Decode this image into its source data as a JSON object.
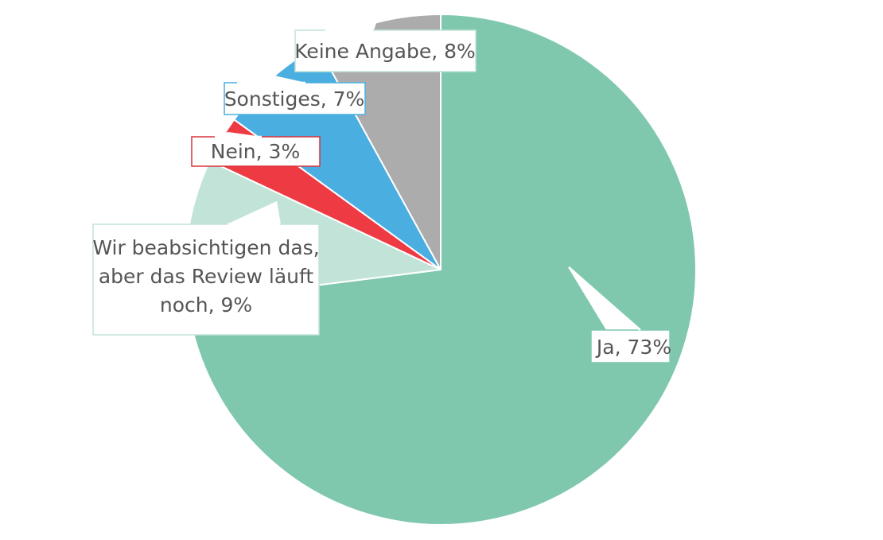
{
  "chart_data": {
    "type": "pie",
    "start_angle_deg": 0,
    "direction": "clockwise",
    "slices": [
      {
        "label": "Ja",
        "value": 73,
        "display": "Ja, 73%",
        "color": "#7fc8ae",
        "border": "#7fc8ae"
      },
      {
        "label": "Wir beabsichtigen das, aber das Review läuft noch",
        "value": 9,
        "display_lines": [
          "Wir beabsichtigen das,",
          "aber das Review läuft",
          "noch, 9%"
        ],
        "color": "#c2e4d8",
        "border": "#c2e4d8"
      },
      {
        "label": "Nein",
        "value": 3,
        "display": "Nein, 3%",
        "color": "#ee3a43",
        "border": "#d9323b"
      },
      {
        "label": "Sonstiges",
        "value": 7,
        "display": "Sonstiges, 7%",
        "color": "#4aaee1",
        "border": "#4aaee1"
      },
      {
        "label": "Keine Angabe",
        "value": 8,
        "display": "Keine Angabe, 8%",
        "color": "#acacac",
        "border": "#c2e4d8"
      }
    ]
  }
}
